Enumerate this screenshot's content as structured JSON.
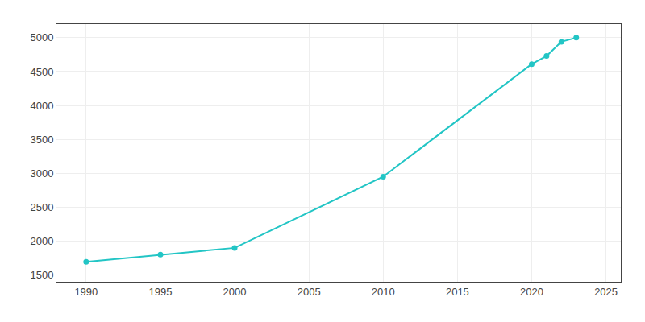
{
  "chart_data": {
    "type": "line",
    "x": [
      1990,
      1995,
      2000,
      2010,
      2020,
      2021,
      2022,
      2023
    ],
    "values": [
      1695,
      1800,
      1900,
      2950,
      4610,
      4730,
      4940,
      5000
    ],
    "color": "#22c5c5",
    "marker": "circle",
    "line_style": "solid",
    "xlim": [
      1988,
      2026
    ],
    "xticks": [
      1990,
      1995,
      2000,
      2005,
      2010,
      2015,
      2020,
      2025
    ],
    "ylim": [
      1400,
      5200
    ],
    "yticks": [
      1500,
      2000,
      2500,
      3000,
      3500,
      4000,
      4500,
      5000
    ],
    "grid": true
  }
}
